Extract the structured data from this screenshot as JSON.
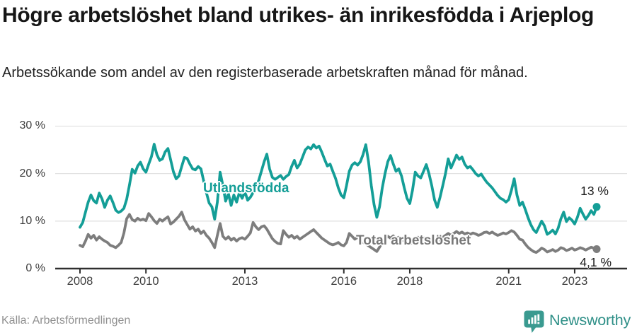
{
  "header": {
    "title": "Högre arbetslöshet bland utrikes- än inrikesfödda i Arjeplog",
    "subtitle": "Arbetssökande som andel av den registerbaserade arbetskraften månad för månad."
  },
  "footer": {
    "source": "Källa: Arbetsförmedlingen",
    "brand": "Newsworthy",
    "brand_icon": "newsworthy-speech-bubble-with-bar-chart-and-exclamation"
  },
  "colors": {
    "foreign_born_line": "#149e97",
    "total_line": "#7d7d7d",
    "gridline": "#e2e2e2",
    "axis": "#2f2f2f",
    "axis_text": "#3e3e3e",
    "title_text": "#161616",
    "source_text": "#909090",
    "logo_teal": "#3a9a90",
    "background": "#ffffff"
  },
  "chart_data": {
    "type": "line",
    "title": "Högre arbetslöshet bland utrikes- än inrikesfödda i Arjeplog",
    "subtitle": "Arbetssökande som andel av den registerbaserade arbetskraften månad för månad.",
    "unit": "percent",
    "frequency": "monthly",
    "x_start": "2008-01",
    "x_end": "2023-09",
    "x_ticks": [
      2008,
      2010,
      2013,
      2016,
      2018,
      2021,
      2023
    ],
    "y_ticks": [
      0,
      10,
      20,
      30
    ],
    "y_tick_labels": [
      "0 %",
      "10 %",
      "20 %",
      "30 %"
    ],
    "ylim": [
      0,
      32
    ],
    "grid": "horizontal",
    "legend": "inline-labels",
    "series": [
      {
        "id": "utlandsfodda",
        "name": "Utlandsfödda",
        "color": "#149e97",
        "end_label": "13 %",
        "last_value": 13.0,
        "values": [
          8.7,
          9.7,
          11.9,
          14.0,
          15.5,
          14.3,
          13.8,
          15.9,
          14.7,
          12.9,
          14.4,
          15.3,
          13.9,
          12.3,
          11.8,
          12.1,
          12.7,
          14.6,
          17.6,
          20.9,
          20.1,
          21.6,
          22.4,
          21.0,
          20.3,
          22.0,
          23.6,
          26.2,
          24.0,
          22.8,
          23.1,
          24.6,
          25.3,
          22.9,
          20.4,
          18.9,
          19.5,
          21.5,
          23.4,
          23.2,
          22.0,
          21.0,
          20.8,
          21.5,
          21.0,
          18.5,
          16.0,
          13.8,
          13.0,
          10.4,
          14.0,
          20.3,
          17.5,
          14.2,
          15.8,
          13.3,
          15.5,
          14.0,
          16.0,
          14.8,
          16.2,
          14.4,
          15.0,
          16.0,
          17.2,
          18.5,
          20.5,
          22.5,
          24.1,
          21.0,
          19.2,
          18.8,
          19.2,
          19.6,
          18.8,
          19.4,
          19.8,
          21.5,
          22.8,
          21.2,
          22.0,
          23.5,
          25.0,
          25.6,
          25.2,
          26.1,
          25.4,
          25.8,
          24.5,
          23.0,
          21.6,
          22.0,
          20.5,
          19.0,
          17.0,
          15.5,
          14.9,
          17.5,
          20.5,
          21.8,
          22.3,
          21.8,
          22.5,
          24.0,
          26.1,
          22.5,
          17.5,
          13.5,
          10.8,
          13.0,
          17.0,
          20.0,
          22.5,
          23.8,
          22.0,
          20.5,
          21.0,
          19.5,
          17.0,
          14.8,
          13.7,
          16.5,
          20.3,
          19.5,
          19.1,
          20.5,
          21.9,
          20.0,
          17.5,
          14.5,
          12.9,
          15.0,
          17.5,
          20.0,
          23.1,
          21.2,
          22.5,
          23.9,
          23.0,
          23.5,
          22.0,
          21.2,
          21.5,
          20.8,
          20.0,
          19.5,
          19.9,
          19.0,
          18.2,
          17.6,
          17.0,
          16.2,
          15.4,
          14.8,
          14.5,
          14.0,
          14.5,
          16.5,
          18.9,
          15.5,
          13.3,
          14.0,
          12.5,
          10.8,
          9.3,
          8.2,
          7.6,
          8.8,
          10.0,
          9.0,
          7.2,
          7.6,
          8.1,
          7.3,
          8.5,
          10.5,
          11.9,
          9.9,
          10.7,
          10.2,
          9.4,
          10.8,
          12.7,
          11.5,
          10.4,
          11.2,
          12.2,
          11.4,
          13.0
        ]
      },
      {
        "id": "total-arbetsloshet",
        "name": "Total arbetslöshet",
        "color": "#7d7d7d",
        "end_label": "4,1 %",
        "last_value": 4.1,
        "values": [
          4.9,
          4.6,
          5.8,
          7.2,
          6.4,
          7.0,
          6.0,
          6.7,
          6.2,
          5.8,
          5.5,
          4.9,
          4.7,
          4.4,
          4.9,
          5.5,
          7.5,
          10.5,
          11.4,
          10.3,
          10.0,
          10.6,
          10.2,
          10.4,
          10.1,
          11.6,
          10.9,
          10.1,
          9.5,
          10.4,
          10.0,
          10.5,
          10.9,
          9.4,
          9.8,
          10.4,
          11.0,
          11.9,
          10.3,
          9.3,
          8.3,
          8.8,
          7.9,
          8.3,
          7.4,
          7.9,
          7.0,
          6.4,
          5.5,
          4.4,
          7.0,
          9.5,
          6.8,
          6.2,
          6.7,
          6.0,
          6.4,
          5.8,
          6.3,
          6.5,
          6.2,
          6.8,
          7.5,
          9.7,
          8.8,
          8.2,
          8.8,
          9.0,
          8.3,
          7.3,
          6.3,
          5.7,
          5.3,
          5.2,
          8.0,
          7.2,
          6.6,
          7.0,
          6.4,
          6.8,
          6.2,
          6.6,
          7.0,
          7.4,
          7.8,
          8.2,
          7.6,
          7.0,
          6.4,
          6.0,
          5.6,
          5.2,
          5.0,
          5.2,
          5.5,
          5.0,
          4.8,
          5.5,
          7.4,
          6.8,
          6.2,
          6.6,
          6.0,
          5.6,
          5.2,
          4.8,
          4.4,
          4.0,
          3.6,
          4.5,
          5.5,
          6.2,
          6.8,
          6.4,
          6.9,
          6.3,
          6.6,
          6.1,
          5.8,
          5.4,
          5.2,
          5.6,
          6.2,
          6.6,
          6.1,
          6.5,
          6.0,
          6.4,
          5.9,
          5.5,
          5.8,
          6.2,
          6.6,
          7.0,
          7.4,
          7.0,
          7.4,
          7.8,
          7.4,
          7.7,
          7.3,
          7.5,
          7.2,
          7.5,
          7.3,
          7.0,
          7.2,
          7.6,
          7.7,
          7.4,
          7.7,
          7.3,
          7.0,
          7.2,
          7.5,
          7.3,
          7.6,
          8.0,
          7.7,
          7.0,
          6.2,
          6.0,
          5.2,
          4.5,
          4.0,
          3.6,
          3.4,
          3.8,
          4.3,
          4.0,
          3.5,
          3.7,
          4.0,
          3.6,
          3.9,
          4.4,
          4.2,
          3.8,
          4.0,
          4.3,
          3.9,
          4.1,
          4.4,
          4.2,
          3.9,
          4.2,
          4.5,
          4.3,
          4.1
        ]
      }
    ]
  }
}
